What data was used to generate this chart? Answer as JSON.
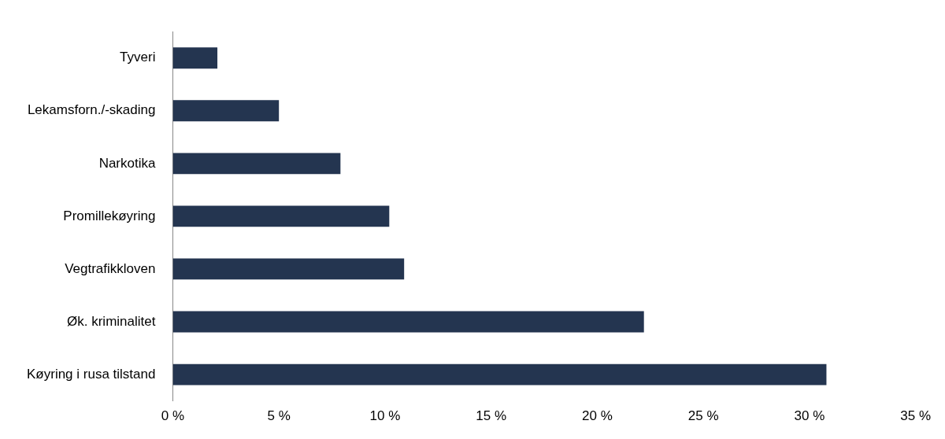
{
  "chart_data": {
    "type": "bar",
    "orientation": "horizontal",
    "categories": [
      "Tyveri",
      "Lekamsforn./-skading",
      "Narkotika",
      "Promillekøyring",
      "Vegtrafikkloven",
      "Øk. kriminalitet",
      "Køyring i rusa tilstand"
    ],
    "values": [
      2.1,
      5.0,
      7.9,
      10.2,
      10.9,
      22.2,
      30.8
    ],
    "color": "#243550",
    "xlim": [
      0,
      35
    ],
    "xticks": [
      {
        "value": 0,
        "label": "0 %"
      },
      {
        "value": 5,
        "label": "5 %"
      },
      {
        "value": 10,
        "label": "10 %"
      },
      {
        "value": 15,
        "label": "15 %"
      },
      {
        "value": 20,
        "label": "20 %"
      },
      {
        "value": 25,
        "label": "25 %"
      },
      {
        "value": 30,
        "label": "30 %"
      },
      {
        "value": 35,
        "label": "35 %"
      }
    ],
    "grid": false,
    "legend": false
  }
}
